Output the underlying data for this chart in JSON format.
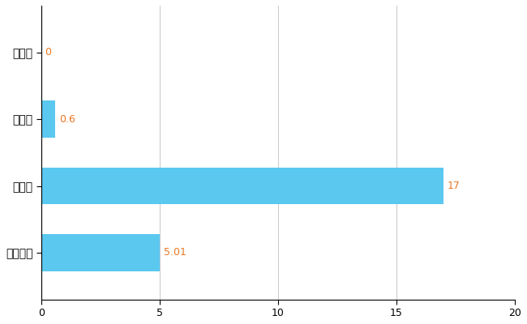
{
  "categories": [
    "有田市",
    "県平均",
    "県最大",
    "全国平均"
  ],
  "values": [
    0,
    0.6,
    17,
    5.01
  ],
  "bar_color": "#5BC8F0",
  "label_color": "#E87722",
  "xlim": [
    0,
    20
  ],
  "xticks": [
    0,
    5,
    10,
    15,
    20
  ],
  "grid_color": "#cccccc",
  "background_color": "#ffffff",
  "value_labels": [
    "0",
    "0.6",
    "17",
    "5.01"
  ]
}
